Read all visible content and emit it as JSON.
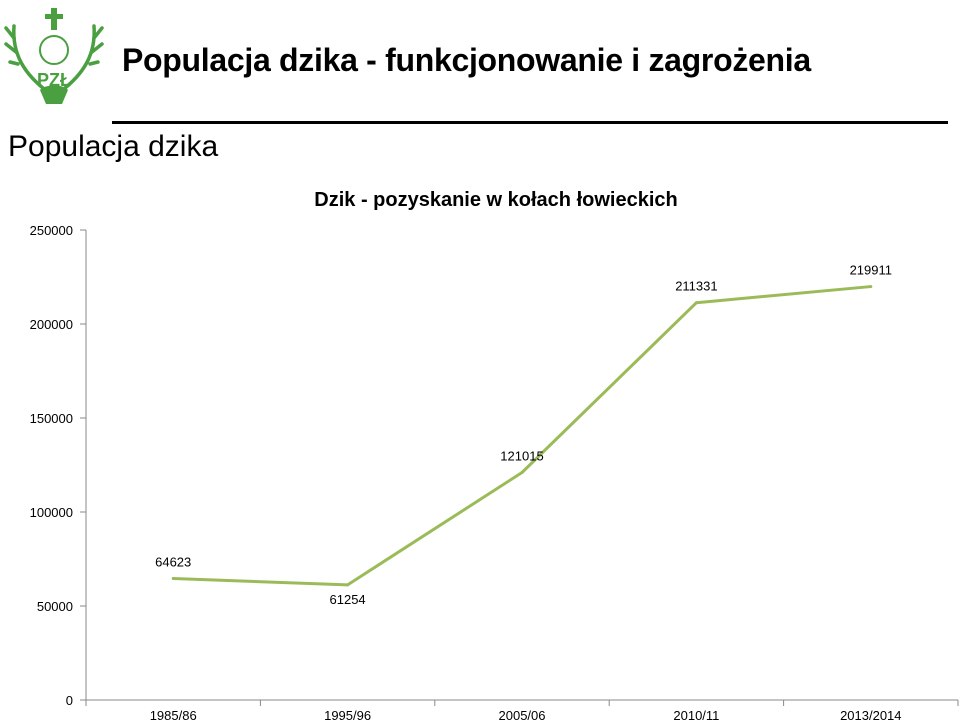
{
  "slide": {
    "title": "Populacja dzika - funkcjonowanie i zagrożenia",
    "section_title": "Populacja dzika"
  },
  "logo": {
    "text": "PZŁ",
    "color": "#4aa041"
  },
  "chart_data": {
    "type": "line",
    "title": "Dzik - pozyskanie w kołach łowieckich",
    "xlabel": "",
    "ylabel": "",
    "categories": [
      "1985/86",
      "1995/96",
      "2005/06",
      "2010/11",
      "2013/2014"
    ],
    "series": [
      {
        "values": [
          64623,
          61254,
          121015,
          211331,
          219911
        ],
        "color": "#9bbb59"
      }
    ],
    "ylim": [
      0,
      250000
    ],
    "yticks": [
      0,
      50000,
      100000,
      150000,
      200000,
      250000
    ],
    "grid": false,
    "legend": "none",
    "data_labels": true
  }
}
